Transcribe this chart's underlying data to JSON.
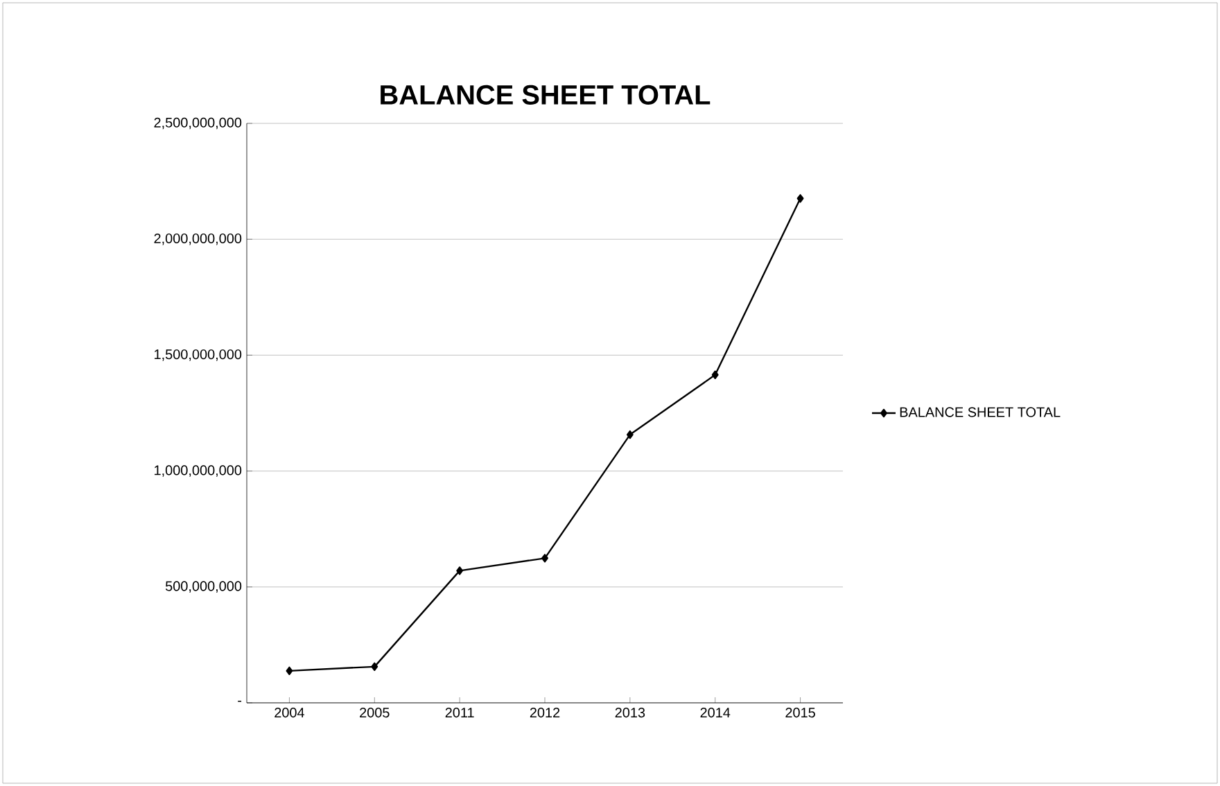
{
  "chart_data": {
    "type": "line",
    "title": "BALANCE SHEET TOTAL",
    "categories": [
      "2004",
      "2005",
      "2011",
      "2012",
      "2013",
      "2014",
      "2015"
    ],
    "series": [
      {
        "name": "BALANCE SHEET TOTAL",
        "color": "#000000",
        "values": [
          138000000,
          156000000,
          570000000,
          624000000,
          1157000000,
          1415000000,
          2176000000
        ]
      }
    ],
    "ylim": [
      0,
      2500000000
    ],
    "yticks": [
      {
        "value": 0,
        "label": "-"
      },
      {
        "value": 500000000,
        "label": "500,000,000"
      },
      {
        "value": 1000000000,
        "label": "1,000,000,000"
      },
      {
        "value": 1500000000,
        "label": "1,500,000,000"
      },
      {
        "value": 2000000000,
        "label": "2,000,000,000"
      },
      {
        "value": 2500000000,
        "label": "2,500,000,000"
      }
    ],
    "grid": "y",
    "legend": "right",
    "marker": "diamond",
    "line_style": "solid"
  }
}
